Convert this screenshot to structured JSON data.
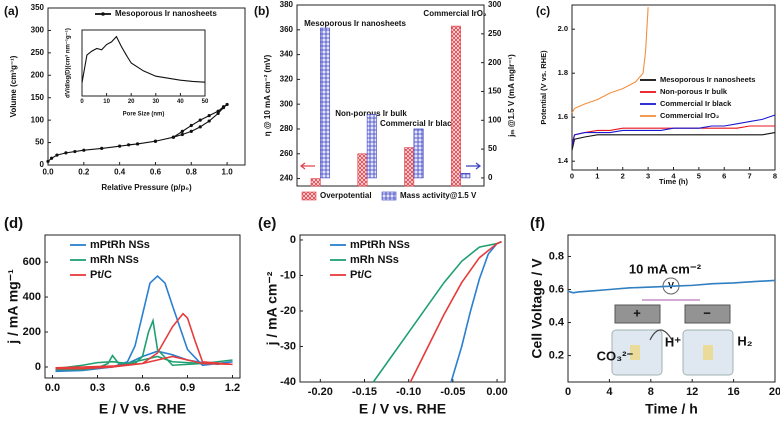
{
  "chart_data": [
    {
      "type": "line",
      "label": "(a)",
      "xlabel": "Relative Pressure (p/p₀)",
      "ylabel": "Volume (cm³g⁻¹)",
      "xlim": [
        0,
        1.1
      ],
      "xticks": [
        {
          "value": 0,
          "label": "0.0"
        },
        0.2,
        0.4,
        0.6,
        0.8,
        {
          "value": 1,
          "label": "1.0"
        }
      ],
      "ylim": [
        0,
        350
      ],
      "yticks": [
        0,
        50,
        100,
        150,
        200,
        250,
        300,
        350
      ],
      "x": [
        0.0,
        0.02,
        0.05,
        0.1,
        0.15,
        0.2,
        0.3,
        0.4,
        0.5,
        0.6,
        0.7,
        0.75,
        0.8,
        0.85,
        0.9,
        0.95,
        0.98,
        1.0,
        0.98,
        0.95,
        0.9,
        0.85,
        0.8,
        0.75,
        0.7,
        0.6,
        0.5,
        0.45
      ],
      "markers": true,
      "series": [
        {
          "name": "Mesoporous Ir nanosheets",
          "color": "#111111",
          "values": [
            8,
            15,
            22,
            27,
            30,
            33,
            37,
            42,
            47,
            53,
            62,
            68,
            75,
            85,
            98,
            115,
            128,
            135,
            130,
            120,
            110,
            100,
            88,
            75,
            62,
            53,
            47,
            45
          ]
        }
      ]
    },
    {
      "type": "line",
      "xlabel": "Pore Size (nm)",
      "ylabel": "dV/dlog(D)(cm³ nm⁻¹g⁻¹)",
      "xlim": [
        0,
        50
      ],
      "xticks": [
        0,
        10,
        20,
        30,
        40,
        50
      ],
      "ylim": [
        0,
        1
      ],
      "x": [
        0,
        2,
        4,
        6,
        8,
        10,
        12,
        14,
        16,
        18,
        20,
        25,
        30,
        35,
        40,
        45,
        50
      ],
      "series": [
        {
          "color": "#111111",
          "values": [
            0.2,
            0.62,
            0.68,
            0.72,
            0.7,
            0.78,
            0.82,
            0.9,
            0.75,
            0.62,
            0.5,
            0.38,
            0.3,
            0.27,
            0.24,
            0.22,
            0.21
          ]
        }
      ]
    },
    {
      "type": "bar",
      "label": "(b)",
      "ylabel": "η @ 10 mA cm⁻² (mV)",
      "y2label": "jₘ @1.5 V (mA mgIr⁻¹)",
      "categories": [
        "Mesoporous Ir nanosheets",
        "Non-porous Ir bulk",
        "Commercial Ir black",
        "Commercial IrO₂"
      ],
      "ylim": [
        234,
        380
      ],
      "yticks": [
        240,
        260,
        280,
        300,
        320,
        340,
        360,
        380
      ],
      "y2lim": [
        -14,
        300
      ],
      "y2ticks": [
        0,
        50,
        100,
        150,
        200,
        250,
        300
      ],
      "series": [
        {
          "name": "Overpotential",
          "color": "#e0404a",
          "values": [
            240,
            260,
            265,
            363
          ]
        },
        {
          "name": "Mass activity@1.5 V",
          "color": "#3a3fc0",
          "axis": "y2",
          "values": [
            260,
            110,
            85,
            8
          ]
        }
      ]
    },
    {
      "type": "line",
      "label": "(c)",
      "xlabel": "Time (h)",
      "ylabel": "Potential (V vs. RHE)",
      "xlim": [
        0,
        8
      ],
      "xticks": [
        0,
        1,
        2,
        3,
        4,
        5,
        6,
        7,
        8
      ],
      "ylim": [
        1.36,
        2.11
      ],
      "yticks": [
        1.4,
        1.6,
        1.8,
        {
          "value": 2,
          "label": "2.0"
        }
      ],
      "x": [
        0,
        0.1,
        0.5,
        1,
        1.5,
        2,
        2.5,
        3,
        3.5,
        4,
        4.5,
        5,
        5.5,
        6,
        6.5,
        7,
        7.5,
        8
      ],
      "series": [
        {
          "name": "Mesoporous Ir nanosheets",
          "color": "#111111",
          "values": [
            1.45,
            1.5,
            1.51,
            1.52,
            1.52,
            1.52,
            1.52,
            1.52,
            1.52,
            1.52,
            1.52,
            1.52,
            1.52,
            1.52,
            1.52,
            1.52,
            1.52,
            1.53
          ]
        },
        {
          "name": "Non-porous Ir bulk",
          "color": "#e8141c",
          "values": [
            1.48,
            1.52,
            1.53,
            1.54,
            1.54,
            1.55,
            1.55,
            1.55,
            1.55,
            1.55,
            1.55,
            1.55,
            1.55,
            1.55,
            1.55,
            1.56,
            1.56,
            1.56
          ]
        },
        {
          "name": "Commercial Ir black",
          "color": "#1a1ad0",
          "values": [
            1.47,
            1.52,
            1.53,
            1.53,
            1.53,
            1.54,
            1.54,
            1.54,
            1.54,
            1.55,
            1.55,
            1.55,
            1.56,
            1.56,
            1.57,
            1.58,
            1.59,
            1.61
          ]
        },
        {
          "name": "Commercial IrO₂",
          "color": "#f39040",
          "x": [
            0,
            0.1,
            0.5,
            1,
            1.5,
            2,
            2.5,
            2.8,
            2.9,
            3.0
          ],
          "values": [
            1.62,
            1.64,
            1.66,
            1.68,
            1.71,
            1.73,
            1.76,
            1.8,
            1.9,
            2.1
          ]
        }
      ]
    },
    {
      "type": "line",
      "label": "(d)",
      "xlabel": "E / V vs. RHE",
      "ylabel": "j / mA mg⁻¹",
      "xlim": [
        -0.05,
        1.25
      ],
      "xticks": [
        {
          "value": 0,
          "label": "0.0"
        },
        0.3,
        0.6,
        0.9,
        1.2
      ],
      "ylim": [
        -63,
        755
      ],
      "yticks": [
        0,
        200,
        400,
        600
      ],
      "series": [
        {
          "name": "mPtRh NSs",
          "color": "#2a7fd0",
          "x": [
            0.02,
            0.2,
            0.4,
            0.5,
            0.6,
            0.7,
            0.8,
            0.9,
            1.0,
            1.1,
            1.2,
            1.1,
            1.0,
            0.9,
            0.8,
            0.75,
            0.7,
            0.65,
            0.6,
            0.55,
            0.5,
            0.4,
            0.2,
            0.02
          ],
          "values": [
            -20,
            -10,
            0,
            20,
            60,
            90,
            70,
            40,
            25,
            15,
            30,
            20,
            10,
            100,
            350,
            480,
            520,
            480,
            300,
            120,
            30,
            0,
            -20,
            -25
          ]
        },
        {
          "name": "mRh NSs",
          "color": "#1fa070",
          "x": [
            0.02,
            0.2,
            0.3,
            0.4,
            0.5,
            0.6,
            0.7,
            0.8,
            1.0,
            1.2,
            1.0,
            0.8,
            0.7,
            0.67,
            0.64,
            0.6,
            0.55,
            0.45,
            0.4,
            0.37,
            0.3,
            0.2,
            0.02
          ],
          "values": [
            -10,
            10,
            25,
            30,
            20,
            40,
            60,
            30,
            20,
            40,
            20,
            10,
            100,
            265,
            200,
            60,
            20,
            10,
            65,
            20,
            -5,
            -15,
            -15
          ]
        },
        {
          "name": "Pt/C",
          "color": "#e83a3a",
          "x": [
            0.02,
            0.2,
            0.4,
            0.6,
            0.7,
            0.8,
            0.9,
            1.0,
            1.2,
            1.0,
            0.95,
            0.9,
            0.87,
            0.8,
            0.7,
            0.6,
            0.4,
            0.2,
            0.02
          ],
          "values": [
            -5,
            0,
            5,
            20,
            40,
            60,
            40,
            20,
            15,
            30,
            150,
            280,
            305,
            230,
            80,
            20,
            0,
            -10,
            -10
          ]
        }
      ]
    },
    {
      "type": "line",
      "label": "(e)",
      "xlabel": "E / V vs. RHE",
      "ylabel": "j / mA cm⁻²",
      "xlim": [
        -0.223,
        0.009
      ],
      "xticks": [
        {
          "value": -0.2,
          "label": "-0.20"
        },
        {
          "value": -0.15,
          "label": "-0.15"
        },
        {
          "value": -0.1,
          "label": "-0.10"
        },
        {
          "value": -0.05,
          "label": "-0.05"
        },
        {
          "value": 0,
          "label": "0.00"
        }
      ],
      "ylim": [
        -40,
        1.4
      ],
      "yticks": [
        -40,
        -30,
        -20,
        -10,
        0
      ],
      "series": [
        {
          "name": "mPtRh NSs",
          "color": "#2a7fd0",
          "x": [
            -0.052,
            -0.04,
            -0.03,
            -0.02,
            -0.01,
            0,
            0.005
          ],
          "values": [
            -40,
            -30,
            -20,
            -11,
            -4,
            -1,
            -0.5
          ]
        },
        {
          "name": "mRh NSs",
          "color": "#1fa070",
          "x": [
            -0.14,
            -0.12,
            -0.1,
            -0.08,
            -0.06,
            -0.04,
            -0.02,
            0,
            0.005
          ],
          "values": [
            -40,
            -33,
            -26,
            -19,
            -12,
            -6,
            -2,
            -1,
            -0.5
          ]
        },
        {
          "name": "Pt/C",
          "color": "#e83a3a",
          "x": [
            -0.098,
            -0.08,
            -0.06,
            -0.04,
            -0.02,
            0,
            0.005
          ],
          "values": [
            -40,
            -31,
            -21,
            -12,
            -5,
            -1,
            -0.5
          ]
        }
      ]
    },
    {
      "type": "line",
      "label": "(f)",
      "xlabel": "Time / h",
      "ylabel": "Cell Voltage / V",
      "xlim": [
        0,
        20
      ],
      "xticks": [
        0,
        4,
        8,
        12,
        16,
        20
      ],
      "ylim": [
        0.04,
        0.93
      ],
      "yticks": [
        0.2,
        0.4,
        0.6,
        0.8
      ],
      "annotations": [
        "10 mA cm⁻²",
        "V",
        "+",
        "−",
        "CO₃²⁻",
        "H⁺",
        "H₂"
      ],
      "x": [
        0,
        0.5,
        1,
        2,
        4,
        6,
        8,
        10,
        12,
        14,
        16,
        18,
        20
      ],
      "series": [
        {
          "color": "#2f7fc1",
          "values": [
            0.59,
            0.58,
            0.585,
            0.59,
            0.6,
            0.61,
            0.615,
            0.62,
            0.625,
            0.635,
            0.64,
            0.648,
            0.655
          ]
        }
      ]
    }
  ]
}
